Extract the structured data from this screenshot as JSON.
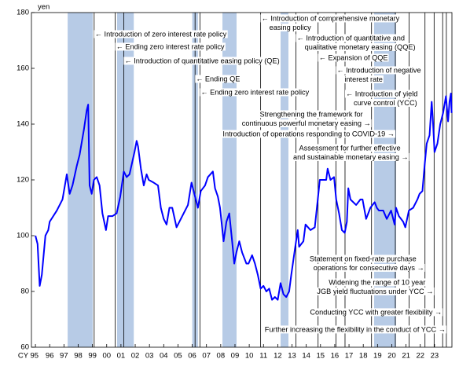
{
  "chart_data": {
    "type": "line",
    "ylabel": "yen",
    "color": "#0000ff",
    "band_color": "#b7cbe6",
    "xlim": [
      1994.72,
      2024.22
    ],
    "ylim": [
      60,
      180
    ],
    "yticks": [
      60,
      80,
      100,
      120,
      140,
      160,
      180
    ],
    "xticks": [
      {
        "value": 1995,
        "label": "CY 95"
      },
      {
        "value": 1996,
        "label": "96"
      },
      {
        "value": 1997,
        "label": "97"
      },
      {
        "value": 1998,
        "label": "98"
      },
      {
        "value": 1999,
        "label": "99"
      },
      {
        "value": 2000,
        "label": "00"
      },
      {
        "value": 2001,
        "label": "01"
      },
      {
        "value": 2002,
        "label": "02"
      },
      {
        "value": 2003,
        "label": "03"
      },
      {
        "value": 2004,
        "label": "04"
      },
      {
        "value": 2005,
        "label": "05"
      },
      {
        "value": 2006,
        "label": "06"
      },
      {
        "value": 2007,
        "label": "07"
      },
      {
        "value": 2008,
        "label": "08"
      },
      {
        "value": 2009,
        "label": "09"
      },
      {
        "value": 2010,
        "label": "10"
      },
      {
        "value": 2011,
        "label": "11"
      },
      {
        "value": 2012,
        "label": "12"
      },
      {
        "value": 2013,
        "label": "13"
      },
      {
        "value": 2014,
        "label": "14"
      },
      {
        "value": 2015,
        "label": "15"
      },
      {
        "value": 2016,
        "label": "16"
      },
      {
        "value": 2017,
        "label": "17"
      },
      {
        "value": 2018,
        "label": "18"
      },
      {
        "value": 2019,
        "label": "19"
      },
      {
        "value": 2020,
        "label": "20"
      },
      {
        "value": 2021,
        "label": "21"
      },
      {
        "value": 2022,
        "label": "22"
      },
      {
        "value": 2023,
        "label": "23"
      }
    ],
    "shaded_periods": [
      [
        1997.26,
        1999.02
      ],
      [
        2000.73,
        2001.9
      ],
      [
        2006.0,
        2006.4
      ],
      [
        2008.12,
        2009.11
      ],
      [
        2012.2,
        2012.75
      ],
      [
        2018.76,
        2020.3
      ]
    ],
    "x": [
      1995.0,
      1995.15,
      1995.3,
      1995.45,
      1995.7,
      1995.9,
      1996.0,
      1996.5,
      1996.9,
      1997.2,
      1997.4,
      1997.6,
      1997.9,
      1998.1,
      1998.4,
      1998.6,
      1998.7,
      1998.8,
      1998.95,
      1999.1,
      1999.3,
      1999.5,
      1999.7,
      1999.95,
      2000.1,
      2000.4,
      2000.7,
      2000.95,
      2001.2,
      2001.4,
      2001.6,
      2001.95,
      2002.1,
      2002.2,
      2002.4,
      2002.6,
      2002.8,
      2002.95,
      2003.3,
      2003.6,
      2003.8,
      2004.0,
      2004.2,
      2004.4,
      2004.6,
      2004.9,
      2005.0,
      2005.4,
      2005.7,
      2005.95,
      2006.1,
      2006.4,
      2006.6,
      2006.9,
      2007.1,
      2007.45,
      2007.6,
      2007.8,
      2007.95,
      2008.2,
      2008.4,
      2008.6,
      2008.8,
      2008.95,
      2009.1,
      2009.3,
      2009.5,
      2009.8,
      2009.95,
      2010.2,
      2010.4,
      2010.6,
      2010.8,
      2011.0,
      2011.2,
      2011.4,
      2011.6,
      2011.8,
      2012.0,
      2012.2,
      2012.4,
      2012.6,
      2012.8,
      2012.95,
      2013.2,
      2013.4,
      2013.5,
      2013.8,
      2013.95,
      2014.3,
      2014.6,
      2014.85,
      2014.95,
      2015.4,
      2015.5,
      2015.7,
      2015.95,
      2016.1,
      2016.3,
      2016.5,
      2016.7,
      2016.85,
      2016.95,
      2017.1,
      2017.5,
      2017.8,
      2017.95,
      2018.2,
      2018.5,
      2018.8,
      2018.95,
      2019.1,
      2019.4,
      2019.65,
      2019.95,
      2020.2,
      2020.3,
      2020.5,
      2020.8,
      2020.95,
      2021.2,
      2021.5,
      2021.8,
      2021.95,
      2022.15,
      2022.3,
      2022.45,
      2022.65,
      2022.8,
      2022.9,
      2023.0,
      2023.2,
      2023.4,
      2023.6,
      2023.8,
      2023.95,
      2024.05,
      2024.15,
      2024.2
    ],
    "values": [
      100,
      97,
      82,
      86,
      100,
      102,
      105,
      109,
      113,
      122,
      115,
      118,
      125,
      129,
      138,
      145,
      147,
      118,
      115,
      120,
      121,
      118,
      108,
      102,
      107,
      107,
      108,
      114,
      123,
      121,
      122,
      130,
      134,
      132,
      124,
      118,
      122,
      120,
      119,
      118,
      110,
      106,
      104,
      110,
      110,
      103,
      104,
      108,
      111,
      119,
      116,
      110,
      116,
      118,
      121,
      123,
      117,
      114,
      110,
      98,
      105,
      108,
      98,
      90,
      94,
      98,
      94,
      90,
      90,
      93,
      90,
      86,
      81,
      82,
      80,
      81,
      77,
      78,
      77,
      83,
      79,
      78,
      80,
      86,
      95,
      102,
      96,
      98,
      104,
      102,
      103,
      115,
      120,
      120,
      124,
      120,
      121,
      113,
      108,
      102,
      101,
      105,
      117,
      113,
      111,
      113,
      113,
      106,
      110,
      112,
      110,
      109,
      109,
      106,
      109,
      104,
      110,
      107,
      105,
      103,
      109,
      110,
      113,
      115,
      116,
      125,
      133,
      136,
      148,
      140,
      130,
      133,
      140,
      144,
      150,
      141,
      148,
      151,
      144
    ],
    "events": [
      {
        "x": 1999.12,
        "lines": [
          "← Introduction of zero interest rate policy"
        ]
      },
      {
        "x": 2000.6,
        "lines": [
          "← Ending zero interest rate policy"
        ]
      },
      {
        "x": 2001.2,
        "lines": [
          "← Introduction of quantitative easing policy (QE)"
        ]
      },
      {
        "x": 2006.2,
        "lines": [
          "← Ending QE"
        ]
      },
      {
        "x": 2006.54,
        "lines": [
          "← Ending zero interest rate policy"
        ]
      },
      {
        "x": 2010.8,
        "lines": [
          "← Introduction of comprehensive monetary",
          "easing policy"
        ]
      },
      {
        "x": 2013.28,
        "lines": [
          "← Introduction of quantitative and",
          "qualitative monetary easing (QQE)"
        ]
      },
      {
        "x": 2014.83,
        "lines": [
          "← Expansion of QQE"
        ]
      },
      {
        "x": 2016.08,
        "lines": [
          "← Introduction of negative",
          "interest rate"
        ]
      },
      {
        "x": 2016.72,
        "lines": [
          "← Introduction of yield",
          "curve control (YCC)"
        ]
      },
      {
        "x": 2018.58,
        "lines": [
          "Strengthening the framework for",
          "continuous powerful monetary easing →"
        ]
      },
      {
        "x": 2020.25,
        "lines": [
          "Introduction of operations responding to COVID-19 →"
        ]
      },
      {
        "x": 2021.22,
        "lines": [
          "Assessment for further effective",
          "and sustainable monetary easing →"
        ]
      },
      {
        "x": 2022.33,
        "lines": [
          "Statement on fixed-rate purchase",
          "operations for consecutive days →"
        ]
      },
      {
        "x": 2022.97,
        "lines": [
          "Widening the range of 10 year",
          "JGB yield fluctuations under YCC →"
        ]
      },
      {
        "x": 2023.57,
        "lines": [
          "Conducting YCC with greater flexibility →"
        ]
      },
      {
        "x": 2023.83,
        "lines": [
          "Further increasing the flexibility in the conduct of YCC →"
        ]
      }
    ]
  }
}
